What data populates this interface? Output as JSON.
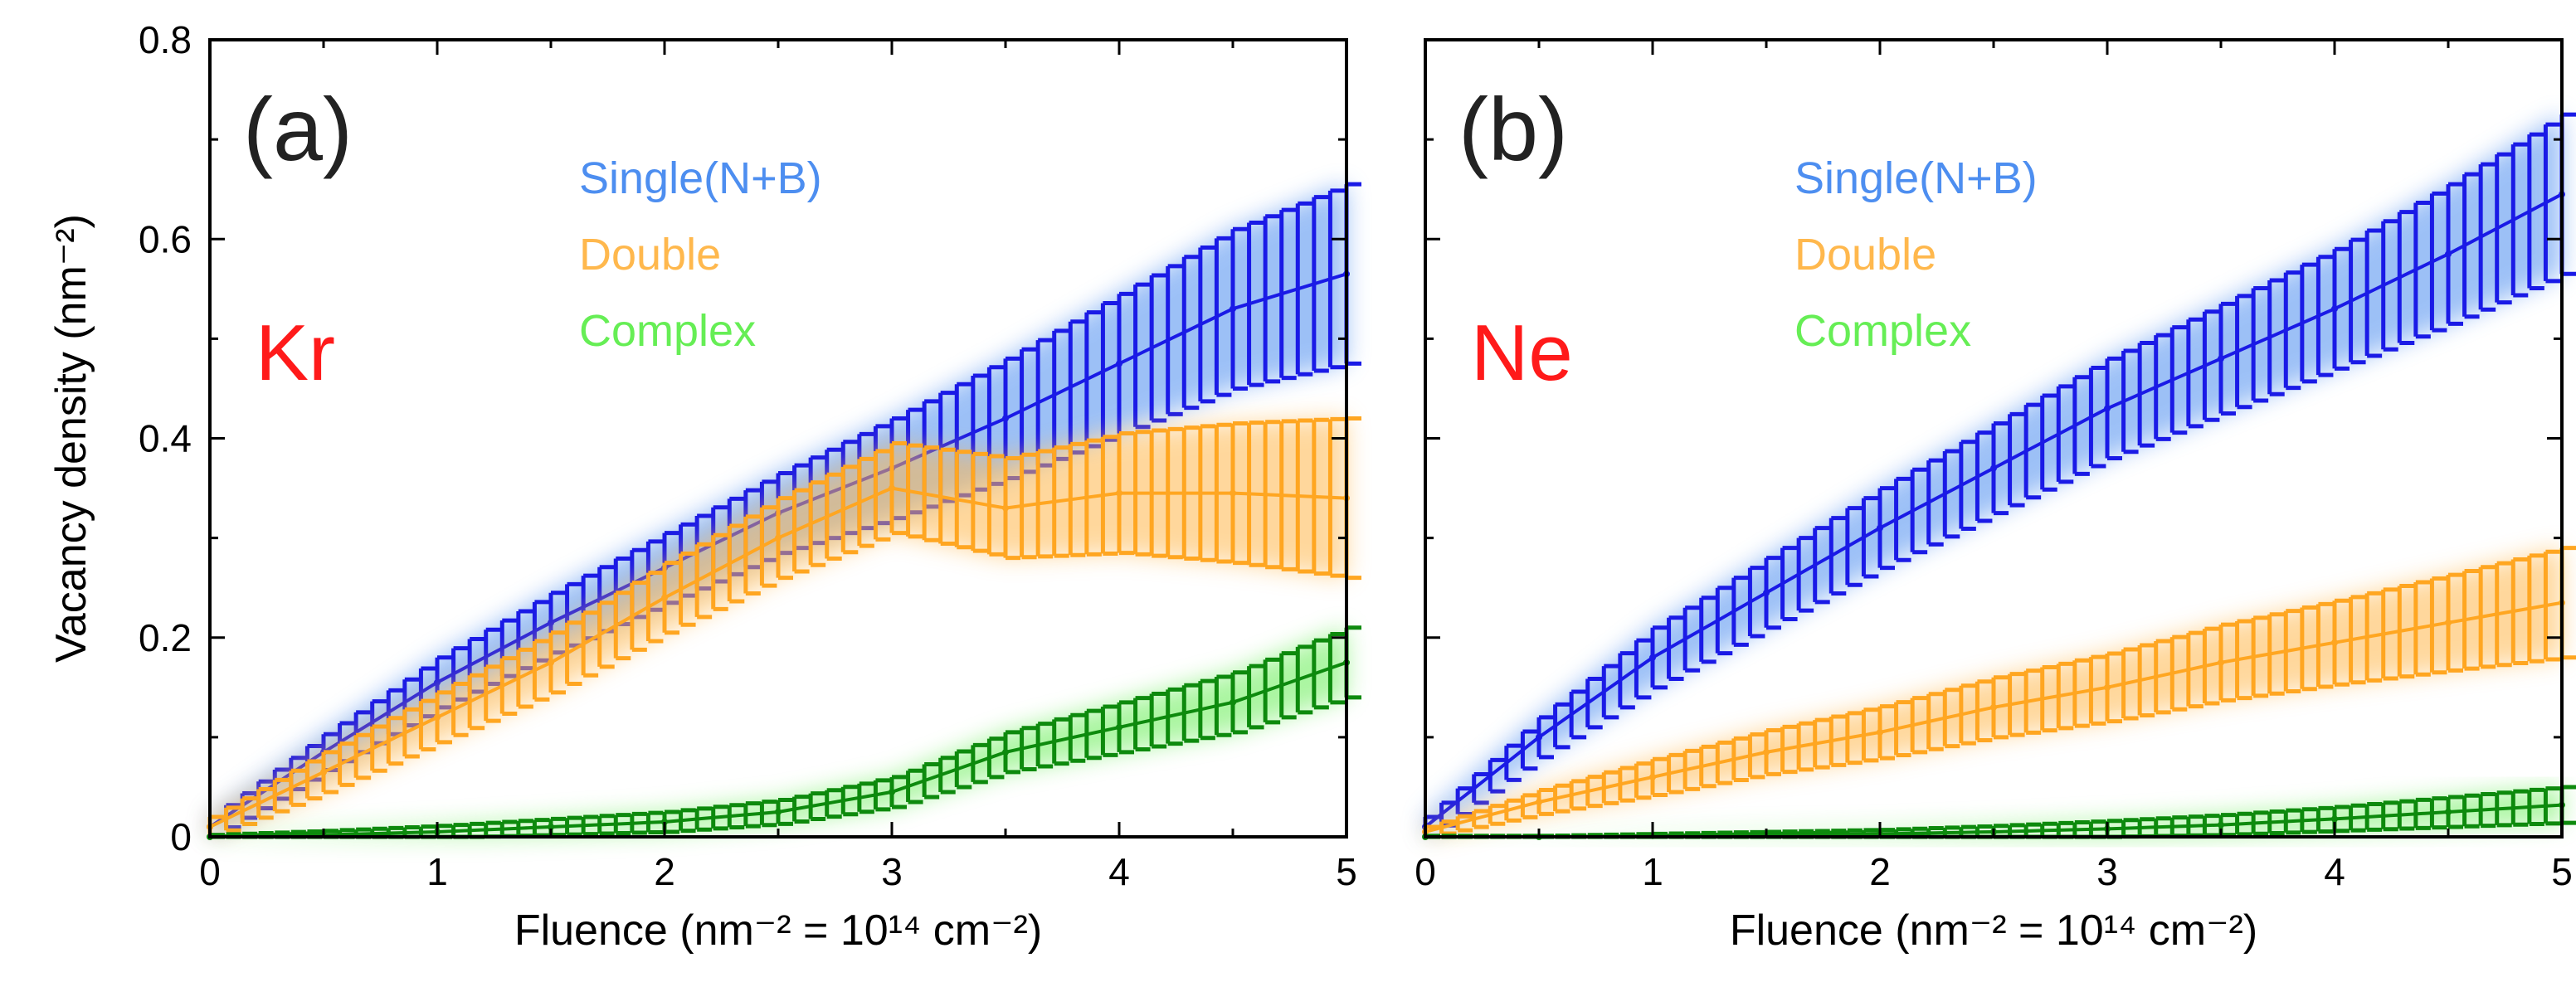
{
  "chart_data": [
    {
      "type": "line",
      "panel_label": "(a)",
      "element_label": "Kr",
      "element_color": "#ff1a1a",
      "xlabel": "Fluence (nm⁻² = 10¹⁴ cm⁻²)",
      "ylabel": "Vacancy density (nm⁻²)",
      "xlim": [
        0,
        5
      ],
      "ylim": [
        0,
        0.8
      ],
      "x_ticks": [
        "0",
        "1",
        "2",
        "3",
        "4",
        "5"
      ],
      "y_ticks": [
        "0",
        "0.2",
        "0.4",
        "0.6",
        "0.8"
      ],
      "legend": [
        "Single(N+B)",
        "Double",
        "Complex"
      ],
      "series": [
        {
          "name": "Single(N+B)",
          "color": "#1a1ae6",
          "legend_color": "#4d8ef0",
          "x": [
            0,
            0.5,
            1,
            1.5,
            2,
            2.5,
            3,
            3.5,
            4,
            4.5,
            5
          ],
          "values": [
            0.01,
            0.085,
            0.155,
            0.215,
            0.27,
            0.325,
            0.37,
            0.42,
            0.475,
            0.53,
            0.565
          ],
          "err": [
            0.01,
            0.018,
            0.025,
            0.03,
            0.035,
            0.04,
            0.05,
            0.06,
            0.07,
            0.08,
            0.09
          ]
        },
        {
          "name": "Double",
          "color": "#ffa621",
          "legend_color": "#ffb84d",
          "x": [
            0,
            0.5,
            1,
            1.5,
            2,
            2.5,
            3,
            3.5,
            4,
            4.5,
            5
          ],
          "values": [
            0.01,
            0.065,
            0.12,
            0.175,
            0.24,
            0.3,
            0.35,
            0.33,
            0.345,
            0.345,
            0.34
          ],
          "err": [
            0.01,
            0.02,
            0.025,
            0.03,
            0.035,
            0.04,
            0.045,
            0.05,
            0.06,
            0.07,
            0.08
          ]
        },
        {
          "name": "Complex",
          "color": "#0d8a0d",
          "legend_color": "#66ee55",
          "x": [
            0,
            0.5,
            1,
            1.5,
            2,
            2.5,
            3,
            3.5,
            4,
            4.5,
            5
          ],
          "values": [
            0,
            0.002,
            0.005,
            0.01,
            0.015,
            0.025,
            0.045,
            0.085,
            0.11,
            0.135,
            0.175
          ],
          "err": [
            0.002,
            0.004,
            0.006,
            0.008,
            0.01,
            0.012,
            0.015,
            0.02,
            0.025,
            0.03,
            0.035
          ]
        }
      ]
    },
    {
      "type": "line",
      "panel_label": "(b)",
      "element_label": "Ne",
      "element_color": "#ff1a1a",
      "xlabel": "Fluence (nm⁻² = 10¹⁴ cm⁻²)",
      "ylabel": "",
      "xlim": [
        0,
        5
      ],
      "ylim": [
        0,
        0.8
      ],
      "x_ticks": [
        "0",
        "1",
        "2",
        "3",
        "4",
        "5"
      ],
      "y_ticks": [],
      "legend": [
        "Single(N+B)",
        "Double",
        "Complex"
      ],
      "series": [
        {
          "name": "Single(N+B)",
          "color": "#1a1ae6",
          "legend_color": "#4d8ef0",
          "x": [
            0,
            0.5,
            1,
            1.5,
            2,
            2.5,
            3,
            3.5,
            4,
            4.5,
            5
          ],
          "values": [
            0.01,
            0.1,
            0.18,
            0.245,
            0.31,
            0.37,
            0.43,
            0.48,
            0.53,
            0.585,
            0.645
          ],
          "err": [
            0.01,
            0.02,
            0.03,
            0.035,
            0.04,
            0.045,
            0.05,
            0.055,
            0.06,
            0.07,
            0.08
          ]
        },
        {
          "name": "Double",
          "color": "#ffa621",
          "legend_color": "#ffb84d",
          "x": [
            0,
            0.5,
            1,
            1.5,
            2,
            2.5,
            3,
            3.5,
            4,
            4.5,
            5
          ],
          "values": [
            0.005,
            0.035,
            0.06,
            0.085,
            0.105,
            0.13,
            0.15,
            0.175,
            0.195,
            0.215,
            0.235
          ],
          "err": [
            0.005,
            0.012,
            0.018,
            0.022,
            0.026,
            0.03,
            0.034,
            0.038,
            0.042,
            0.048,
            0.055
          ]
        },
        {
          "name": "Complex",
          "color": "#0d8a0d",
          "legend_color": "#66ee55",
          "x": [
            0,
            0.5,
            1,
            1.5,
            2,
            2.5,
            3,
            3.5,
            4,
            4.5,
            5
          ],
          "values": [
            0,
            0,
            0.001,
            0.002,
            0.003,
            0.005,
            0.008,
            0.012,
            0.018,
            0.025,
            0.032
          ],
          "err": [
            0.001,
            0.001,
            0.002,
            0.003,
            0.004,
            0.006,
            0.008,
            0.01,
            0.012,
            0.015,
            0.018
          ]
        }
      ]
    }
  ]
}
